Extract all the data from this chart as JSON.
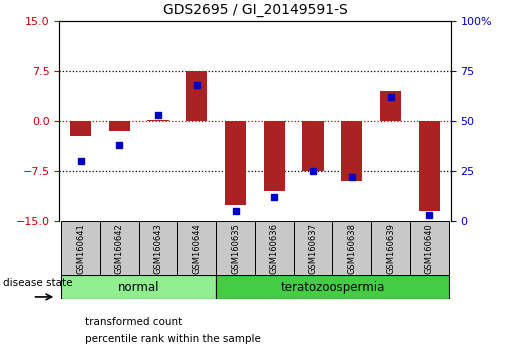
{
  "title": "GDS2695 / GI_20149591-S",
  "samples": [
    "GSM160641",
    "GSM160642",
    "GSM160643",
    "GSM160644",
    "GSM160635",
    "GSM160636",
    "GSM160637",
    "GSM160638",
    "GSM160639",
    "GSM160640"
  ],
  "transformed_count": [
    -2.2,
    -1.5,
    0.2,
    7.5,
    -12.5,
    -10.5,
    -7.5,
    -9.0,
    4.5,
    -13.5
  ],
  "percentile_rank": [
    30,
    38,
    53,
    68,
    5,
    12,
    25,
    22,
    62,
    3
  ],
  "groups": [
    {
      "label": "normal",
      "indices": [
        0,
        1,
        2,
        3
      ],
      "color": "#90EE90"
    },
    {
      "label": "teratozoospermia",
      "indices": [
        4,
        5,
        6,
        7,
        8,
        9
      ],
      "color": "#44CC44"
    }
  ],
  "ylim_left": [
    -15,
    15
  ],
  "ylim_right": [
    0,
    100
  ],
  "yticks_left": [
    -15,
    -7.5,
    0,
    7.5,
    15
  ],
  "yticks_right": [
    0,
    25,
    50,
    75,
    100
  ],
  "bar_color": "#AA2222",
  "dot_color": "#0000CC",
  "hline_color": "#CC0000",
  "disease_state_label": "disease state",
  "legend_items": [
    "transformed count",
    "percentile rank within the sample"
  ],
  "legend_colors": [
    "#AA2222",
    "#0000CC"
  ]
}
